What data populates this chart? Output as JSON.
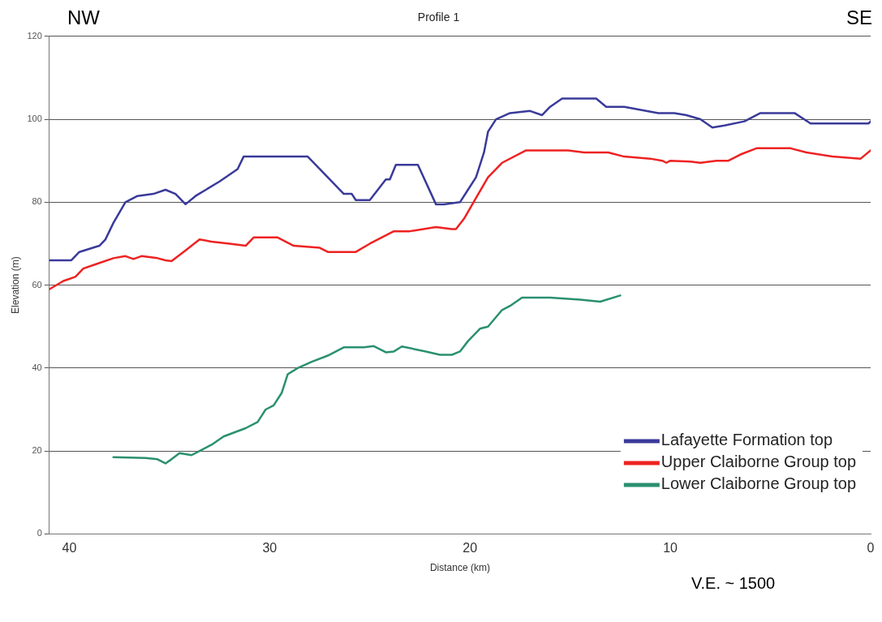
{
  "chart_data": {
    "type": "line",
    "title": "Profile 1",
    "xlabel": "Distance (km)",
    "ylabel": "Elevation (m)",
    "annotations": [
      "NW",
      "SE",
      "V.E. ~ 1500"
    ],
    "xlim": [
      41,
      0
    ],
    "xticks": [
      40,
      30,
      20,
      10,
      0
    ],
    "ylim": [
      0,
      120
    ],
    "yticks": [
      0,
      20,
      40,
      60,
      80,
      100,
      120
    ],
    "grid": "y",
    "legend": "bottom right",
    "marker": "none",
    "line_style": "solid",
    "series": [
      {
        "name": "Lafayette Formation top",
        "color": "#3a3a9a",
        "x": [
          41,
          39.9,
          39.5,
          38.5,
          38.2,
          37.8,
          37.2,
          36.6,
          35.8,
          35.2,
          34.7,
          34.2,
          33.7,
          32.5,
          31.6,
          31.3,
          28.1,
          27.5,
          26.7,
          26.3,
          25.9,
          25.7,
          25,
          24.6,
          24.2,
          24,
          23.7,
          22.6,
          21.7,
          21.3,
          20.5,
          20.1,
          19.7,
          19.3,
          19.1,
          18.7,
          18,
          17,
          16.4,
          16,
          15.4,
          13.7,
          13.2,
          12.3,
          10.6,
          9.8,
          9.2,
          8.5,
          7.9,
          7.3,
          6.3,
          5.5,
          3.8,
          3,
          2.4,
          0.1,
          0
        ],
        "values": [
          66,
          66,
          68,
          69.5,
          71,
          75,
          80,
          81.5,
          82,
          83,
          82,
          79.5,
          81.5,
          85,
          88,
          91,
          91,
          88,
          84,
          82,
          82,
          80.5,
          80.5,
          83,
          85.5,
          85.5,
          89,
          89,
          79.5,
          79.5,
          80,
          83,
          86,
          92,
          97,
          100,
          101.5,
          102,
          101,
          103,
          105,
          105,
          103,
          103,
          101.5,
          101.5,
          101,
          100,
          98,
          98.5,
          99.5,
          101.5,
          101.5,
          99,
          99,
          99,
          99.5
        ]
      },
      {
        "name": "Upper Claiborne Group top",
        "color": "#ee2222",
        "x": [
          41,
          40.3,
          39.7,
          39.3,
          38.7,
          37.8,
          37.2,
          36.8,
          36.4,
          35.6,
          35.2,
          34.9,
          34.3,
          33.5,
          32.9,
          32,
          31.2,
          30.8,
          29.6,
          28.8,
          27.5,
          27.1,
          25.7,
          25,
          23.8,
          23,
          21.7,
          20.9,
          20.7,
          20.3,
          19.7,
          19.1,
          18.4,
          17.2,
          15.1,
          14.3,
          13.1,
          12.3,
          11,
          10.4,
          10.2,
          10,
          9,
          8.5,
          7.7,
          7.1,
          6.5,
          5.7,
          4,
          3.2,
          1.9,
          0.5,
          0
        ],
        "values": [
          59,
          61,
          62,
          64,
          65,
          66.5,
          67,
          66.3,
          67,
          66.5,
          66,
          65.8,
          68,
          71,
          70.5,
          70,
          69.5,
          71.5,
          71.5,
          69.5,
          69,
          68,
          68,
          70,
          73,
          73,
          74,
          73.5,
          73.5,
          76,
          81,
          86,
          89.5,
          92.5,
          92.5,
          92,
          92,
          91,
          90.5,
          90,
          89.5,
          90,
          89.8,
          89.5,
          90,
          90,
          91.5,
          93,
          93,
          92,
          91,
          90.5,
          92.5
        ]
      },
      {
        "name": "Lower Claiborne Group top",
        "color": "#2a9070",
        "x": [
          37.8,
          36.2,
          35.6,
          35.2,
          34.9,
          34.5,
          33.9,
          33.5,
          32.9,
          32.3,
          31.2,
          30.6,
          30.2,
          29.8,
          29.4,
          29.1,
          28.6,
          27.9,
          27.1,
          26.3,
          25.3,
          24.8,
          24.2,
          23.8,
          23.4,
          22.2,
          21.5,
          20.9,
          20.5,
          20.1,
          19.5,
          19.1,
          18.4,
          18,
          17.4,
          16,
          14.5,
          13.5,
          12.5
        ],
        "values": [
          18.5,
          18.3,
          18,
          17,
          18,
          19.5,
          19,
          20,
          21.5,
          23.5,
          25.5,
          27,
          30,
          31,
          34,
          38.5,
          40,
          41.5,
          43,
          45,
          45,
          45.3,
          43.8,
          44,
          45.2,
          44,
          43.2,
          43.2,
          44,
          46.5,
          49.5,
          50,
          54,
          55,
          57,
          57,
          56.5,
          56,
          57.5
        ]
      }
    ]
  }
}
